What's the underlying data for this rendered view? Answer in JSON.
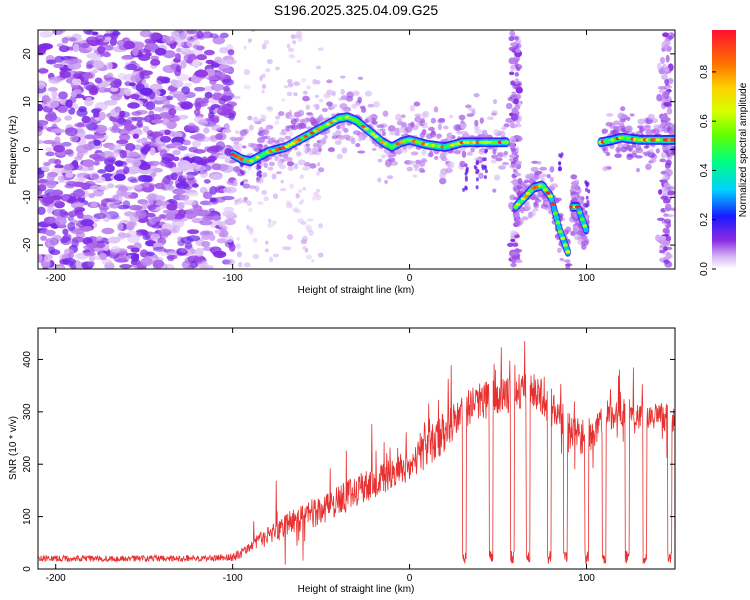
{
  "title": "S196.2025.325.04.09.G25",
  "chart_data": [
    {
      "type": "heatmap",
      "xlabel": "Height of straight line (km)",
      "ylabel": "Frequency (Hz)",
      "xlim": [
        -210,
        150
      ],
      "ylim": [
        -25,
        25
      ],
      "x_ticks": [
        -200,
        -100,
        0,
        100
      ],
      "y_ticks": [
        -20,
        -10,
        0,
        10,
        20
      ],
      "colorbar": {
        "label": "Normalized spectral amplitude",
        "range": [
          0,
          0.97
        ],
        "ticks": [
          0.0,
          0.2,
          0.4,
          0.6,
          0.8
        ]
      },
      "dominant_frequency_ridge": {
        "x": [
          -100,
          -95,
          -90,
          -85,
          -80,
          -75,
          -70,
          -65,
          -60,
          -55,
          -50,
          -45,
          -40,
          -35,
          -30,
          -25,
          -20,
          -15,
          -10,
          -5,
          0,
          10,
          20,
          30,
          40,
          50,
          55
        ],
        "y": [
          -1,
          -2,
          -2.5,
          -1.5,
          -0.5,
          0,
          0.5,
          1.5,
          2.5,
          3.5,
          4.5,
          5.5,
          6.5,
          6.8,
          6,
          4.5,
          3,
          1.5,
          0.5,
          1.5,
          2,
          1,
          0.5,
          1.5,
          1.5,
          1.5,
          1.5
        ]
      },
      "dominant_frequency_segments": [
        {
          "x": [
            60,
            65,
            70,
            75,
            80,
            85,
            90
          ],
          "y": [
            -12,
            -10,
            -8,
            -7.5,
            -10,
            -17,
            -22
          ]
        },
        {
          "x": [
            92,
            95,
            100
          ],
          "y": [
            -12,
            -12,
            -17
          ]
        },
        {
          "x": [
            108,
            115,
            120,
            130,
            140,
            150
          ],
          "y": [
            1.5,
            2,
            2.5,
            2,
            2,
            2
          ]
        }
      ],
      "vertical_noise_bands_x": [
        60,
        145
      ]
    },
    {
      "type": "line",
      "xlabel": "Height of straight line (km)",
      "ylabel": "SNR (10 * v/v)",
      "xlim": [
        -210,
        150
      ],
      "ylim": [
        0,
        460
      ],
      "x_ticks": [
        -200,
        -100,
        0,
        100
      ],
      "y_ticks": [
        0,
        100,
        200,
        300,
        400
      ],
      "series": [
        {
          "name": "SNR",
          "color": "#e83030",
          "x": [
            -210,
            -200,
            -180,
            -160,
            -140,
            -120,
            -100,
            -90,
            -80,
            -70,
            -60,
            -50,
            -40,
            -30,
            -20,
            -10,
            0,
            10,
            20,
            30,
            40,
            50,
            60,
            70,
            80,
            90,
            100,
            110,
            120,
            130,
            140,
            150
          ],
          "y": [
            20,
            20,
            20,
            20,
            20,
            20,
            22,
            40,
            65,
            85,
            100,
            110,
            130,
            150,
            165,
            180,
            200,
            230,
            265,
            300,
            320,
            330,
            340,
            350,
            310,
            260,
            250,
            285,
            300,
            295,
            290,
            290
          ],
          "spread": [
            12,
            12,
            12,
            12,
            12,
            12,
            15,
            25,
            40,
            45,
            55,
            60,
            60,
            60,
            60,
            60,
            65,
            75,
            80,
            70,
            70,
            70,
            80,
            80,
            80,
            75,
            70,
            55,
            55,
            55,
            60,
            60
          ],
          "dropout_x": [
            31,
            46,
            58,
            67,
            79,
            88,
            100,
            110,
            123,
            133,
            147
          ]
        }
      ]
    }
  ]
}
